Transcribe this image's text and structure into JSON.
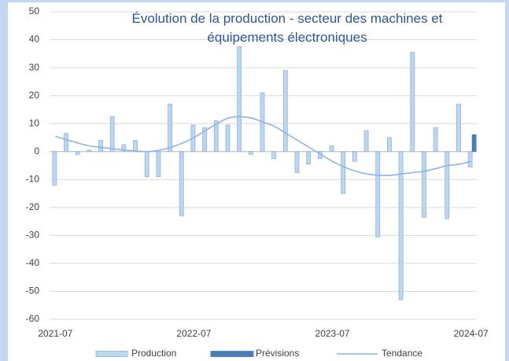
{
  "chart_data": {
    "type": "bar",
    "title": "Évolution de la production - secteur des machines et équipements électroniques",
    "categories": [
      "2021-07",
      null,
      null,
      null,
      null,
      null,
      null,
      null,
      null,
      null,
      null,
      null,
      "2022-07",
      null,
      null,
      null,
      null,
      null,
      null,
      null,
      null,
      null,
      null,
      null,
      "2023-07",
      null,
      null,
      null,
      null,
      null,
      null,
      null,
      null,
      null,
      null,
      null,
      "2024-07"
    ],
    "series": [
      {
        "name": "Production",
        "type": "bar",
        "color": "#bdd7ee",
        "values": [
          -12,
          6.5,
          -1,
          0.5,
          4,
          12.5,
          2.5,
          4,
          -9,
          -9,
          17,
          -23,
          9.5,
          8.5,
          11,
          9.5,
          37.5,
          -1,
          21,
          -2.5,
          29,
          -7.5,
          -4.5,
          -2.5,
          2,
          -15,
          -3.5,
          7.5,
          -30.5,
          5,
          -53,
          35.5,
          -23.5,
          8.5,
          -24,
          17,
          -5.5
        ]
      },
      {
        "name": "Prévisions",
        "type": "bar",
        "color": "#4a7fb5",
        "values": [
          null,
          null,
          null,
          null,
          null,
          null,
          null,
          null,
          null,
          null,
          null,
          null,
          null,
          null,
          null,
          null,
          null,
          null,
          null,
          null,
          null,
          null,
          null,
          null,
          null,
          null,
          null,
          null,
          null,
          null,
          null,
          null,
          null,
          null,
          null,
          null,
          6
        ]
      },
      {
        "name": "Tendance",
        "type": "line",
        "color": "#8eb4e3",
        "values": [
          5.5,
          4.2,
          3,
          2,
          1.5,
          1,
          0.5,
          0.2,
          0,
          0.5,
          1.5,
          3,
          5,
          7.5,
          10,
          12,
          12.5,
          12,
          10.5,
          9,
          6.5,
          4,
          1.5,
          -1,
          -3.5,
          -5.5,
          -7,
          -8,
          -8.5,
          -8.5,
          -8,
          -7.5,
          -7,
          -6,
          -5,
          -4.5,
          -3.5
        ]
      }
    ],
    "ylim": [
      -60,
      50
    ],
    "yticks": [
      -60,
      -50,
      -40,
      -30,
      -20,
      -10,
      0,
      10,
      20,
      30,
      40,
      50
    ],
    "grid": true,
    "legend": "bottom"
  }
}
